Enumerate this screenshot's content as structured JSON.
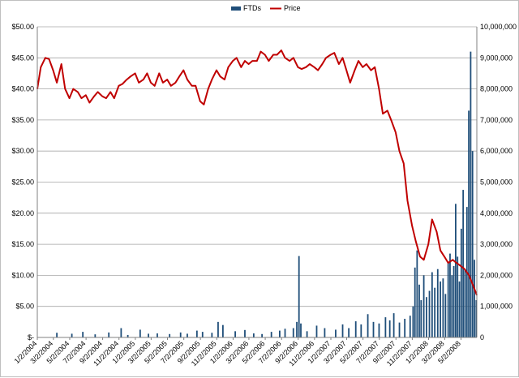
{
  "chart_data": {
    "type": "bar+line",
    "legend": {
      "position": "top",
      "entries": [
        "FTDs",
        "Price"
      ]
    },
    "colors": {
      "ftds": "#1f4e79",
      "price": "#c00000",
      "grid": "#a6a6a6",
      "axis": "#808080"
    },
    "grid": true,
    "y_left": {
      "label": "",
      "range": [
        0,
        50
      ],
      "tick_labels": [
        "$-",
        "$5.00",
        "$10.00",
        "$15.00",
        "$20.00",
        "$25.00",
        "$30.00",
        "$35.00",
        "$40.00",
        "$45.00",
        "$50.00"
      ]
    },
    "y_right": {
      "label": "",
      "range": [
        0,
        10000000
      ],
      "tick_labels": [
        "0",
        "1,000,000",
        "2,000,000",
        "3,000,000",
        "4,000,000",
        "5,000,000",
        "6,000,000",
        "7,000,000",
        "8,000,000",
        "9,000,000",
        "10,000,000"
      ]
    },
    "x_axis": {
      "label": "",
      "range": [
        "2004-01-02",
        "2008-06-30"
      ],
      "tick_labels": [
        "1/2/2004",
        "3/2/2004",
        "5/2/2004",
        "7/2/2004",
        "9/2/2004",
        "11/2/2004",
        "1/2/2005",
        "3/2/2005",
        "5/2/2005",
        "7/2/2005",
        "9/2/2005",
        "11/2/2005",
        "1/2/2006",
        "3/2/2006",
        "5/2/2006",
        "7/2/2006",
        "9/2/2006",
        "11/2/2006",
        "1/2/2007",
        "3/2/2007",
        "5/2/2007",
        "7/2/2007",
        "9/2/2007",
        "11/2/2007",
        "1/2/2008",
        "3/2/2008",
        "5/2/2008"
      ]
    },
    "series": [
      {
        "name": "Price",
        "type": "line",
        "axis": "left",
        "x": [
          "2004-01-02",
          "2004-01-15",
          "2004-02-01",
          "2004-02-15",
          "2004-03-01",
          "2004-03-15",
          "2004-04-01",
          "2004-04-15",
          "2004-05-01",
          "2004-05-15",
          "2004-06-01",
          "2004-06-15",
          "2004-07-01",
          "2004-07-15",
          "2004-08-01",
          "2004-08-15",
          "2004-09-01",
          "2004-09-15",
          "2004-10-01",
          "2004-10-15",
          "2004-11-01",
          "2004-11-15",
          "2004-12-01",
          "2004-12-15",
          "2005-01-01",
          "2005-01-15",
          "2005-02-01",
          "2005-02-15",
          "2005-03-01",
          "2005-03-15",
          "2005-04-01",
          "2005-04-15",
          "2005-05-01",
          "2005-05-15",
          "2005-06-01",
          "2005-06-15",
          "2005-07-01",
          "2005-07-15",
          "2005-08-01",
          "2005-08-15",
          "2005-09-01",
          "2005-09-15",
          "2005-10-01",
          "2005-10-15",
          "2005-11-01",
          "2005-11-15",
          "2005-12-01",
          "2005-12-15",
          "2006-01-01",
          "2006-01-15",
          "2006-02-01",
          "2006-02-15",
          "2006-03-01",
          "2006-03-15",
          "2006-04-01",
          "2006-04-15",
          "2006-05-01",
          "2006-05-15",
          "2006-06-01",
          "2006-06-15",
          "2006-07-01",
          "2006-07-15",
          "2006-08-01",
          "2006-08-15",
          "2006-09-01",
          "2006-09-15",
          "2006-10-01",
          "2006-10-15",
          "2006-11-01",
          "2006-11-15",
          "2006-12-01",
          "2006-12-15",
          "2007-01-01",
          "2007-01-15",
          "2007-02-01",
          "2007-02-15",
          "2007-03-01",
          "2007-03-15",
          "2007-04-01",
          "2007-04-15",
          "2007-05-01",
          "2007-05-15",
          "2007-06-01",
          "2007-06-15",
          "2007-07-01",
          "2007-07-15",
          "2007-08-01",
          "2007-08-15",
          "2007-09-01",
          "2007-09-15",
          "2007-10-01",
          "2007-10-15",
          "2007-11-01",
          "2007-11-15",
          "2007-12-01",
          "2007-12-15",
          "2008-01-01",
          "2008-01-15",
          "2008-02-01",
          "2008-02-15",
          "2008-03-01",
          "2008-03-15",
          "2008-04-01",
          "2008-04-15",
          "2008-05-01",
          "2008-05-15",
          "2008-06-01",
          "2008-06-15",
          "2008-06-30"
        ],
        "values": [
          40.0,
          43.5,
          45.0,
          44.8,
          43.0,
          41.0,
          44.0,
          40.0,
          38.5,
          40.0,
          39.5,
          38.5,
          39.0,
          37.8,
          38.8,
          39.5,
          38.8,
          38.5,
          39.5,
          38.5,
          40.5,
          40.8,
          41.5,
          42.0,
          42.5,
          41.0,
          41.5,
          42.5,
          41.0,
          40.5,
          42.5,
          41.0,
          41.5,
          40.5,
          41.0,
          42.0,
          43.0,
          41.5,
          40.5,
          40.5,
          38.0,
          37.5,
          40.0,
          41.5,
          43.0,
          42.0,
          41.5,
          43.5,
          44.5,
          45.0,
          43.5,
          44.5,
          44.0,
          44.5,
          44.5,
          46.0,
          45.5,
          44.5,
          45.5,
          45.5,
          46.2,
          45.0,
          44.5,
          45.0,
          43.5,
          43.2,
          43.5,
          44.0,
          43.5,
          43.0,
          44.0,
          45.0,
          45.5,
          45.8,
          44.0,
          45.0,
          43.0,
          41.0,
          43.0,
          44.5,
          43.5,
          44.0,
          43.0,
          43.5,
          40.0,
          36.0,
          36.5,
          35.0,
          33.0,
          30.0,
          28.0,
          22.0,
          18.0,
          15.5,
          13.0,
          12.5,
          15.0,
          19.0,
          17.0,
          14.0,
          13.0,
          12.0,
          12.5,
          12.0,
          11.5,
          11.0,
          10.0,
          8.5,
          6.8
        ]
      },
      {
        "name": "FTDs",
        "type": "bar",
        "axis": "right",
        "x": [
          "2004-03-15",
          "2004-05-10",
          "2004-06-20",
          "2004-08-05",
          "2004-09-25",
          "2004-11-10",
          "2004-12-05",
          "2005-01-20",
          "2005-02-20",
          "2005-03-25",
          "2005-05-10",
          "2005-06-20",
          "2005-07-15",
          "2005-08-20",
          "2005-09-10",
          "2005-10-15",
          "2005-11-07",
          "2005-11-25",
          "2006-01-10",
          "2006-02-15",
          "2006-03-20",
          "2006-04-20",
          "2006-05-25",
          "2006-06-25",
          "2006-07-15",
          "2006-08-15",
          "2006-08-28",
          "2006-09-05",
          "2006-09-12",
          "2006-10-05",
          "2006-11-10",
          "2006-12-10",
          "2007-01-20",
          "2007-02-15",
          "2007-03-10",
          "2007-04-05",
          "2007-04-25",
          "2007-05-20",
          "2007-06-10",
          "2007-07-01",
          "2007-07-25",
          "2007-08-10",
          "2007-08-25",
          "2007-09-15",
          "2007-10-05",
          "2007-10-25",
          "2007-11-05",
          "2007-11-12",
          "2007-11-20",
          "2007-11-28",
          "2007-12-05",
          "2007-12-15",
          "2007-12-25",
          "2008-01-05",
          "2008-01-15",
          "2008-01-25",
          "2008-02-05",
          "2008-02-15",
          "2008-02-25",
          "2008-03-05",
          "2008-03-15",
          "2008-03-22",
          "2008-03-29",
          "2008-04-05",
          "2008-04-12",
          "2008-04-19",
          "2008-04-26",
          "2008-05-03",
          "2008-05-10",
          "2008-05-17",
          "2008-05-24",
          "2008-05-31",
          "2008-06-07",
          "2008-06-14",
          "2008-06-21",
          "2008-06-28"
        ],
        "values": [
          150000,
          120000,
          180000,
          100000,
          160000,
          300000,
          80000,
          250000,
          120000,
          130000,
          110000,
          160000,
          120000,
          220000,
          180000,
          150000,
          500000,
          400000,
          200000,
          240000,
          130000,
          110000,
          180000,
          220000,
          280000,
          300000,
          500000,
          2620000,
          450000,
          200000,
          380000,
          300000,
          250000,
          420000,
          300000,
          520000,
          420000,
          750000,
          500000,
          450000,
          650000,
          550000,
          780000,
          480000,
          600000,
          700000,
          1000000,
          2250000,
          2800000,
          1700000,
          1200000,
          2000000,
          1300000,
          1500000,
          2100000,
          1600000,
          2200000,
          1800000,
          1900000,
          1400000,
          2400000,
          2700000,
          2000000,
          2300000,
          4300000,
          2600000,
          1800000,
          3500000,
          4750000,
          2200000,
          4200000,
          7300000,
          9200000,
          6000000,
          2500000,
          1200000
        ]
      }
    ]
  }
}
